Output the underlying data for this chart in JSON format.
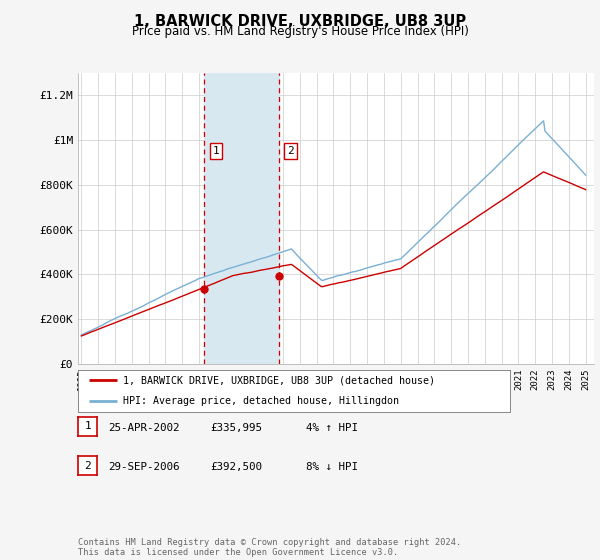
{
  "title": "1, BARWICK DRIVE, UXBRIDGE, UB8 3UP",
  "subtitle": "Price paid vs. HM Land Registry's House Price Index (HPI)",
  "ylabel_ticks": [
    "£0",
    "£200K",
    "£400K",
    "£600K",
    "£800K",
    "£1M",
    "£1.2M"
  ],
  "ytick_vals": [
    0,
    200000,
    400000,
    600000,
    800000,
    1000000,
    1200000
  ],
  "ylim": [
    0,
    1300000
  ],
  "xlim_start": 1994.8,
  "xlim_end": 2025.5,
  "background_color": "#f5f5f5",
  "plot_bg_color": "#ffffff",
  "highlight_color": "#d8e8f0",
  "purchase1_x": 2002.3,
  "purchase1_y": 335995,
  "purchase2_x": 2006.75,
  "purchase2_y": 392500,
  "vline1_x": 2002.3,
  "vline2_x": 2006.75,
  "hpi_color": "#7ab0d4",
  "price_color": "#cc0000",
  "legend_line1": "1, BARWICK DRIVE, UXBRIDGE, UB8 3UP (detached house)",
  "legend_line2": "HPI: Average price, detached house, Hillingdon",
  "table_row1": [
    "1",
    "25-APR-2002",
    "£335,995",
    "4% ↑ HPI"
  ],
  "table_row2": [
    "2",
    "29-SEP-2006",
    "£392,500",
    "8% ↓ HPI"
  ],
  "footer": "Contains HM Land Registry data © Crown copyright and database right 2024.\nThis data is licensed under the Open Government Licence v3.0."
}
